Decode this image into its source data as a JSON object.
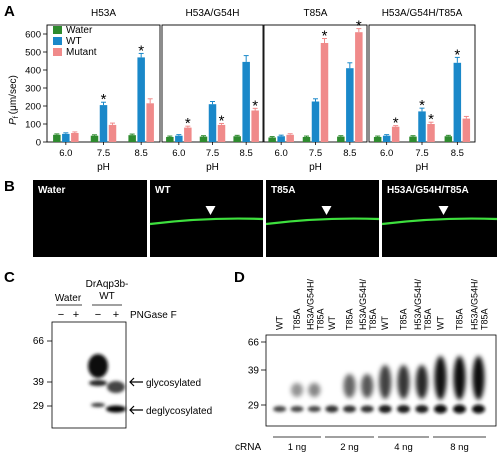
{
  "panel_a": {
    "letter": "A",
    "ylabel_main": "P",
    "ylabel_sub": "f",
    "ylabel_unit": "(μm/sec)",
    "xlabel": "pH",
    "legend": [
      "Water",
      "WT",
      "Mutant"
    ],
    "colors": {
      "water": "#2e8b2e",
      "wt": "#1a88c9",
      "mutant": "#f08a8a"
    },
    "star": "*"
  },
  "chart_data": [
    {
      "type": "bar",
      "title": "H53A",
      "categories": [
        "6.0",
        "7.5",
        "8.5"
      ],
      "xlabel": "pH",
      "ylabel": "Pf (μm/sec)",
      "ylim": [
        0,
        650
      ],
      "yticks": [
        "0",
        "100",
        "200",
        "300",
        "400",
        "500",
        "600"
      ],
      "series": [
        {
          "name": "Water",
          "values": [
            40,
            35,
            38
          ]
        },
        {
          "name": "WT",
          "values": [
            45,
            205,
            470
          ]
        },
        {
          "name": "Mutant",
          "values": [
            50,
            95,
            215
          ]
        }
      ],
      "errors": [
        [
          5,
          5,
          6
        ],
        [
          6,
          16,
          22
        ],
        [
          6,
          10,
          25
        ]
      ],
      "significant": [
        [
          false,
          false,
          false
        ],
        [
          false,
          true,
          true
        ],
        [
          false,
          false,
          false
        ]
      ]
    },
    {
      "type": "bar",
      "title": "H53A/G54H",
      "categories": [
        "6.0",
        "7.5",
        "8.5"
      ],
      "xlabel": "pH",
      "ylim": [
        0,
        650
      ],
      "series": [
        {
          "name": "Water",
          "values": [
            28,
            30,
            32
          ]
        },
        {
          "name": "WT",
          "values": [
            35,
            210,
            445
          ]
        },
        {
          "name": "Mutant",
          "values": [
            80,
            95,
            175
          ]
        }
      ],
      "errors": [
        [
          5,
          5,
          5
        ],
        [
          6,
          15,
          35
        ],
        [
          8,
          8,
          12
        ]
      ],
      "significant": [
        [
          false,
          false,
          false
        ],
        [
          false,
          false,
          false
        ],
        [
          true,
          true,
          true
        ]
      ]
    },
    {
      "type": "bar",
      "title": "T85A",
      "categories": [
        "6.0",
        "7.5",
        "8.5"
      ],
      "xlabel": "pH",
      "ylim": [
        0,
        650
      ],
      "series": [
        {
          "name": "Water",
          "values": [
            25,
            28,
            30
          ]
        },
        {
          "name": "WT",
          "values": [
            32,
            225,
            410
          ]
        },
        {
          "name": "Mutant",
          "values": [
            40,
            550,
            610
          ]
        }
      ],
      "errors": [
        [
          5,
          5,
          5
        ],
        [
          6,
          15,
          30
        ],
        [
          6,
          25,
          20
        ]
      ],
      "significant": [
        [
          false,
          false,
          false
        ],
        [
          false,
          false,
          false
        ],
        [
          false,
          true,
          true
        ]
      ]
    },
    {
      "type": "bar",
      "title": "H53A/G54H/T85A",
      "categories": [
        "6.0",
        "7.5",
        "8.5"
      ],
      "xlabel": "pH",
      "ylim": [
        0,
        650
      ],
      "series": [
        {
          "name": "Water",
          "values": [
            28,
            30,
            32
          ]
        },
        {
          "name": "WT",
          "values": [
            35,
            170,
            440
          ]
        },
        {
          "name": "Mutant",
          "values": [
            85,
            100,
            130
          ]
        }
      ],
      "errors": [
        [
          5,
          5,
          5
        ],
        [
          6,
          18,
          30
        ],
        [
          6,
          10,
          12
        ]
      ],
      "significant": [
        [
          false,
          false,
          false
        ],
        [
          false,
          true,
          true
        ],
        [
          true,
          true,
          false
        ]
      ]
    }
  ],
  "panel_b": {
    "letter": "B",
    "images": [
      "Water",
      "WT",
      "T85A",
      "H53A/G54H/T85A"
    ],
    "membrane_color": "#3ee03e"
  },
  "panel_c": {
    "letter": "C",
    "group_labels": [
      "Water",
      "DrAqp3b-\nWT"
    ],
    "group_label_line1": "DrAqp3b-",
    "group_label_line2": "WT",
    "signs": [
      "−",
      "+",
      "−",
      "+"
    ],
    "pngase_label": "PNGase F",
    "markers": [
      "66",
      "39",
      "29"
    ],
    "bands": [
      "glycosylated",
      "deglycosylated"
    ]
  },
  "panel_d": {
    "letter": "D",
    "lanes": [
      "WT",
      "T85A",
      "H53A/G54H/T85A"
    ],
    "lane_line1": "H53A/G54H/",
    "lane_line2": "T85A",
    "markers": [
      "66",
      "39",
      "29"
    ],
    "cRNA_label": "cRNA",
    "doses": [
      "1 ng",
      "2 ng",
      "4 ng",
      "8 ng"
    ]
  }
}
